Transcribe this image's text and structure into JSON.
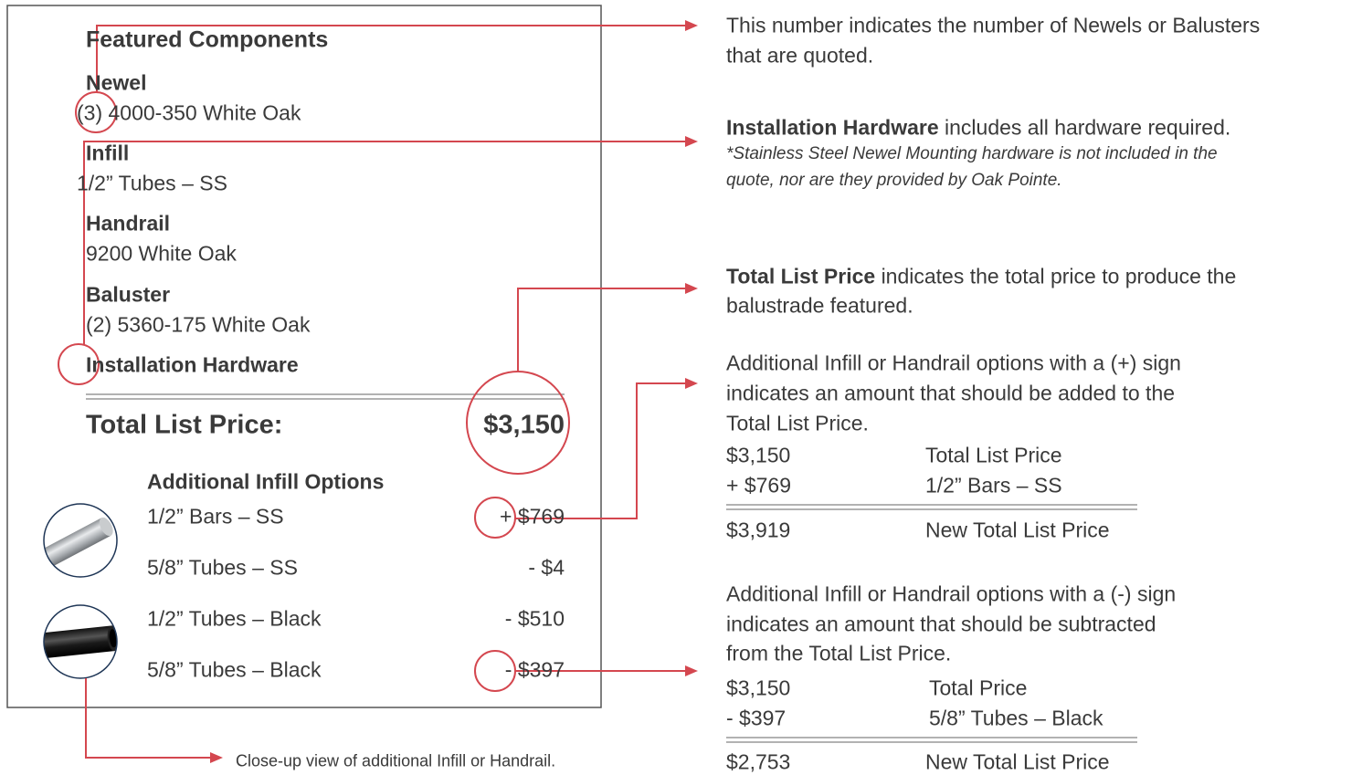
{
  "panel": {
    "heading": "Featured Components",
    "sections": [
      {
        "label": "Newel",
        "value": "(3) 4000-350 White Oak"
      },
      {
        "label": "Infill",
        "value": "1/2” Tubes – SS"
      },
      {
        "label": "Handrail",
        "value": "9200 White Oak"
      },
      {
        "label": "Baluster",
        "value": "(2) 5360-175 White Oak"
      },
      {
        "label": "Installation Hardware"
      }
    ],
    "total": {
      "label": "Total List Price:",
      "price": "$3,150"
    },
    "options": {
      "heading": "Additional Infill Options",
      "items": [
        {
          "name": "1/2” Bars – SS",
          "price": "+ $769"
        },
        {
          "name": "5/8” Tubes – SS",
          "price": "- $4"
        },
        {
          "name": "1/2” Tubes – Black",
          "price": "- $510"
        },
        {
          "name": "5/8” Tubes – Black",
          "price": "- $397"
        }
      ]
    }
  },
  "notes": {
    "quantity": [
      "This number indicates the number of Newels or Balusters",
      "that are quoted."
    ],
    "hardware": {
      "term": "Installation Hardware",
      "text": "includes all hardware required.",
      "footnote": [
        "*Stainless Steel Newel Mounting hardware is not included in the",
        "quote, nor are they provided by Oak Pointe."
      ]
    },
    "total": {
      "term": "Total List Price",
      "text": "indicates the total price to produce the",
      "continued": "balustrade featured."
    },
    "addition": {
      "text": [
        "Additional Infill or Handrail options with a (+) sign",
        "indicates an amount that should be added to the",
        "Total List Price."
      ],
      "rows": [
        [
          "$3,150",
          "Total List Price"
        ],
        [
          "+ $769",
          "1/2” Bars – SS"
        ]
      ],
      "result": [
        "$3,919",
        "New Total List Price"
      ]
    },
    "subtraction": {
      "text": [
        "Additional Infill or Handrail options with a (-) sign",
        "indicates an amount that should be subtracted",
        "from the Total List Price."
      ],
      "rows": [
        [
          "$3,150",
          "Total Price"
        ],
        [
          "- $397",
          "5/8” Tubes – Black"
        ]
      ],
      "result": [
        "$2,753",
        "New Total List Price"
      ]
    },
    "closeup": "Close-up view of additional Infill or Handrail."
  }
}
